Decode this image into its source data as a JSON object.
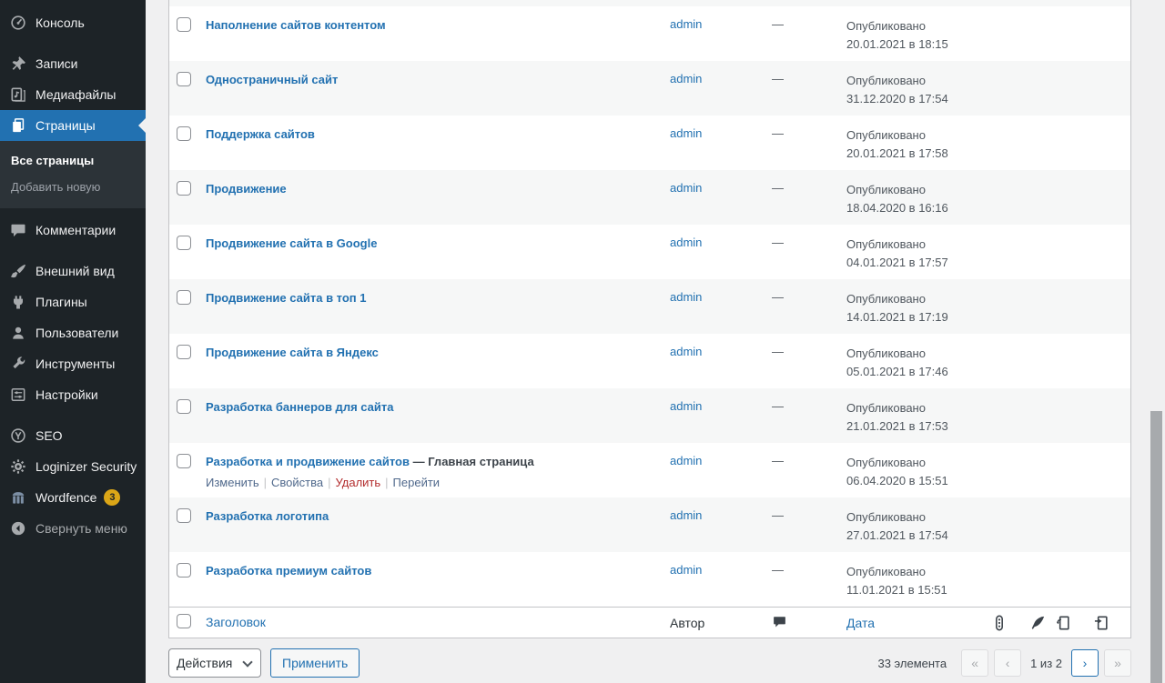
{
  "colors": {
    "accent": "#2271b1",
    "trash_link": "#b32d2e",
    "badge": "#dba617",
    "sidebar_bg": "#1d2327",
    "stripe": "#f6f7f7"
  },
  "sidebar": {
    "items": [
      {
        "id": "dashboard",
        "label": "Консоль",
        "icon": "dashboard-icon"
      },
      {
        "id": "posts",
        "label": "Записи",
        "icon": "pushpin-icon",
        "separator": true
      },
      {
        "id": "media",
        "label": "Медиафайлы",
        "icon": "media-icon"
      },
      {
        "id": "pages",
        "label": "Страницы",
        "icon": "pages-icon",
        "active": true
      },
      {
        "id": "comments",
        "label": "Комментарии",
        "icon": "comments-icon"
      },
      {
        "id": "appearance",
        "label": "Внешний вид",
        "icon": "brush-icon",
        "separator": true
      },
      {
        "id": "plugins",
        "label": "Плагины",
        "icon": "plug-icon"
      },
      {
        "id": "users",
        "label": "Пользователи",
        "icon": "user-icon"
      },
      {
        "id": "tools",
        "label": "Инструменты",
        "icon": "wrench-icon"
      },
      {
        "id": "settings",
        "label": "Настройки",
        "icon": "sliders-icon"
      },
      {
        "id": "seo",
        "label": "SEO",
        "icon": "yoast-icon",
        "separator": true
      },
      {
        "id": "loginizer",
        "label": "Loginizer Security",
        "icon": "gear-icon"
      },
      {
        "id": "wordfence",
        "label": "Wordfence",
        "icon": "fence-icon",
        "badge": "3"
      },
      {
        "id": "collapse",
        "label": "Свернуть меню",
        "icon": "collapse-icon",
        "muted": true
      }
    ],
    "submenu": [
      "Все страницы",
      "Добавить новую"
    ]
  },
  "table": {
    "rows": [
      {
        "title": "Наполнение сайтов контентом",
        "author": "admin",
        "comments": "—",
        "status": "Опубликовано",
        "date": "20.01.2021 в 18:15"
      },
      {
        "title": "Одностраничный сайт",
        "author": "admin",
        "comments": "—",
        "status": "Опубликовано",
        "date": "31.12.2020 в 17:54"
      },
      {
        "title": "Поддержка сайтов",
        "author": "admin",
        "comments": "—",
        "status": "Опубликовано",
        "date": "20.01.2021 в 17:58"
      },
      {
        "title": "Продвижение",
        "author": "admin",
        "comments": "—",
        "status": "Опубликовано",
        "date": "18.04.2020 в 16:16"
      },
      {
        "title": "Продвижение сайта в Google",
        "author": "admin",
        "comments": "—",
        "status": "Опубликовано",
        "date": "04.01.2021 в 17:57"
      },
      {
        "title": "Продвижение сайта в топ 1",
        "author": "admin",
        "comments": "—",
        "status": "Опубликовано",
        "date": "14.01.2021 в 17:19"
      },
      {
        "title": "Продвижение сайта в Яндекс",
        "author": "admin",
        "comments": "—",
        "status": "Опубликовано",
        "date": "05.01.2021 в 17:46"
      },
      {
        "title": "Разработка баннеров для сайта",
        "author": "admin",
        "comments": "—",
        "status": "Опубликовано",
        "date": "21.01.2021 в 17:53"
      },
      {
        "title": "Разработка и продвижение сайтов",
        "title_state": " — Главная страница",
        "author": "admin",
        "comments": "—",
        "status": "Опубликовано",
        "date": "06.04.2020 в 15:51",
        "actions": [
          {
            "kind": "edit",
            "label": "Изменить"
          },
          {
            "kind": "quick-edit",
            "label": "Свойства"
          },
          {
            "kind": "delete",
            "label": "Удалить"
          },
          {
            "kind": "view",
            "label": "Перейти"
          }
        ]
      },
      {
        "title": "Разработка логотипа",
        "author": "admin",
        "comments": "—",
        "status": "Опубликовано",
        "date": "27.01.2021 в 17:54"
      },
      {
        "title": "Разработка премиум сайтов",
        "author": "admin",
        "comments": "—",
        "status": "Опубликовано",
        "date": "11.01.2021 в 15:51"
      }
    ],
    "footer": {
      "title": "Заголовок",
      "author": "Автор",
      "comments_icon": "comments-column-icon",
      "date": "Дата",
      "icon_columns": [
        "seo-score-icon",
        "readability-icon",
        "incoming-links-icon",
        "outgoing-links-icon"
      ]
    }
  },
  "tablenav": {
    "bulk_action": "Действия",
    "apply": "Применить",
    "count": "33 элемента",
    "page_label": "1 из 2",
    "first": "«",
    "prev": "‹",
    "next": "›",
    "last": "»"
  }
}
